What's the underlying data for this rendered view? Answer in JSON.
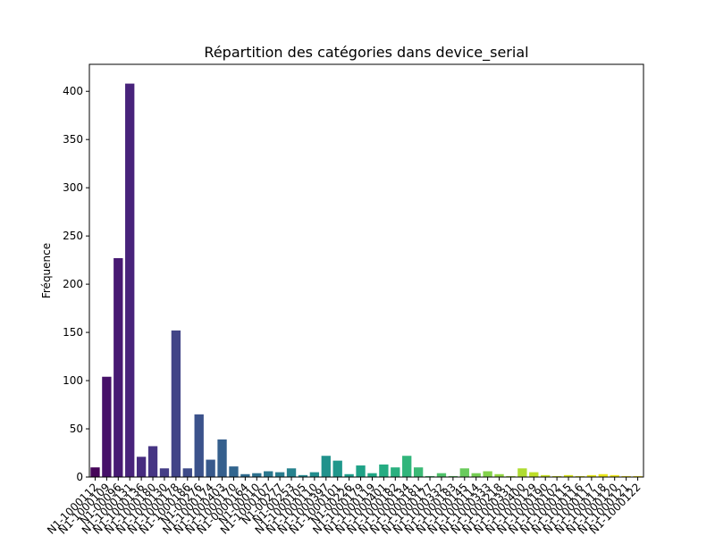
{
  "chart_data": {
    "type": "bar",
    "title": "Répartition des catégories dans device_serial",
    "ylabel": "Fréquence",
    "categories": [
      "N1-1000112",
      "N1-1000109",
      "N1-00096",
      "N1-1000131",
      "N1-1000136",
      "N1-1000180",
      "N1-1000130",
      "N1-1000178",
      "N1-1000186",
      "N1-00276",
      "N1-1000174",
      "N1-1000403",
      "N1-1000170",
      "N1-0000164",
      "N1-00010",
      "N1-1000107",
      "N1-00277",
      "N1-00253",
      "N1-1000105",
      "N1-1000110",
      "N1-1000397",
      "N1-1000101",
      "N1-00226",
      "N1-1000179",
      "N1-1000119",
      "N1-1000401",
      "N1-1000182",
      "N1-1000134",
      "N1-1000181",
      "N1-1000177",
      "N1-1000332",
      "N1-1000183",
      "N1-1000145",
      "N1-1000114",
      "N1-1000333",
      "N1-1000218",
      "N1-1000331",
      "N1-1000400",
      "N1-1000129",
      "N1-1000190",
      "N1-1000102",
      "N1-1000115",
      "N1-1000116",
      "N1-1000117",
      "N1-1000118",
      "N1-1000120",
      "N1-1000121",
      "N1-1000122"
    ],
    "values": [
      10,
      104,
      227,
      408,
      21,
      32,
      9,
      152,
      9,
      65,
      18,
      39,
      11,
      3,
      4,
      6,
      5,
      9,
      2,
      5,
      22,
      17,
      3,
      12,
      4,
      13,
      10,
      22,
      10,
      1,
      4,
      1,
      9,
      4,
      6,
      3,
      1,
      9,
      5,
      2,
      1,
      2,
      1,
      2,
      3,
      2,
      1,
      1
    ],
    "colors": [
      "#450559",
      "#461069",
      "#471a73",
      "#48237b",
      "#472c80",
      "#463584",
      "#443d86",
      "#414487",
      "#3e4b89",
      "#3b528b",
      "#38598c",
      "#355f8d",
      "#32658e",
      "#2f6b8e",
      "#2d718e",
      "#2a778e",
      "#287c8e",
      "#26828e",
      "#24878e",
      "#228d8d",
      "#21928c",
      "#1f978b",
      "#1f9d8a",
      "#1fa287",
      "#21a785",
      "#25ac82",
      "#2ab07f",
      "#31b57b",
      "#3bba76",
      "#45be70",
      "#50c26a",
      "#5cc663",
      "#69cb5c",
      "#76ce54",
      "#83d24b",
      "#92d642",
      "#a0d93a",
      "#afdc31",
      "#bede28",
      "#c6df24",
      "#cde11e",
      "#d5e21a",
      "#dce319",
      "#e2e418",
      "#e8e519",
      "#ede51b",
      "#f1e51d",
      "#f6e620"
    ],
    "ylim": [
      0,
      428
    ],
    "yticks": [
      0,
      50,
      100,
      150,
      200,
      250,
      300,
      350,
      400
    ],
    "grid": false
  }
}
